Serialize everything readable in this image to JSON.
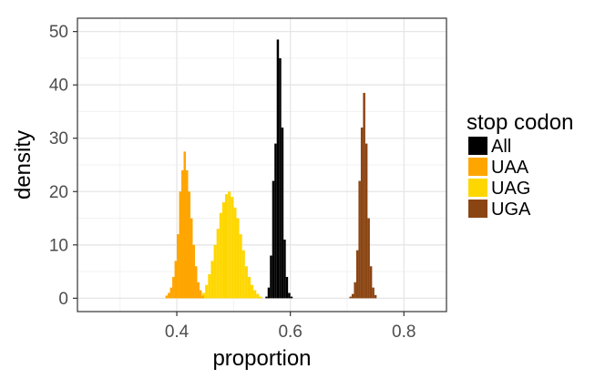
{
  "chart_data": {
    "type": "histogram",
    "xlabel": "proportion",
    "ylabel": "density",
    "xlim": [
      0.225,
      0.875
    ],
    "ylim": [
      -2.5,
      52.5
    ],
    "x_ticks": [
      0.4,
      0.6,
      0.8
    ],
    "x_tick_labels": [
      "0.4",
      "0.6",
      "0.8"
    ],
    "y_ticks": [
      0,
      10,
      20,
      30,
      40,
      50
    ],
    "y_tick_labels": [
      "0",
      "10",
      "20",
      "30",
      "40",
      "50"
    ],
    "grid": true,
    "legend": {
      "title": "stop codon",
      "position": "right",
      "entries": [
        "All",
        "UAA",
        "UAG",
        "UGA"
      ]
    },
    "series": [
      {
        "name": "UAG",
        "color": "#FFD700",
        "bin_width": 0.005,
        "bins": [
          [
            0.44,
            0.3
          ],
          [
            0.445,
            1.0
          ],
          [
            0.45,
            2.5
          ],
          [
            0.455,
            4.5
          ],
          [
            0.46,
            7.0
          ],
          [
            0.465,
            10.0
          ],
          [
            0.47,
            13.0
          ],
          [
            0.475,
            16.0
          ],
          [
            0.48,
            18.0
          ],
          [
            0.485,
            19.5
          ],
          [
            0.49,
            20.0
          ],
          [
            0.495,
            19.0
          ],
          [
            0.5,
            17.0
          ],
          [
            0.505,
            15.0
          ],
          [
            0.51,
            12.0
          ],
          [
            0.515,
            9.0
          ],
          [
            0.52,
            6.0
          ],
          [
            0.525,
            4.0
          ],
          [
            0.53,
            2.5
          ],
          [
            0.535,
            1.5
          ],
          [
            0.54,
            0.8
          ],
          [
            0.545,
            0.3
          ]
        ]
      },
      {
        "name": "UAA",
        "color": "#FFA500",
        "bin_width": 0.004,
        "bins": [
          [
            0.38,
            0.5
          ],
          [
            0.384,
            1.0
          ],
          [
            0.388,
            2.0
          ],
          [
            0.392,
            4.0
          ],
          [
            0.396,
            7.0
          ],
          [
            0.4,
            12.0
          ],
          [
            0.404,
            20.0
          ],
          [
            0.408,
            24.0
          ],
          [
            0.412,
            27.5
          ],
          [
            0.416,
            24.0
          ],
          [
            0.42,
            20.0
          ],
          [
            0.424,
            15.0
          ],
          [
            0.428,
            10.0
          ],
          [
            0.432,
            6.0
          ],
          [
            0.436,
            3.0
          ],
          [
            0.44,
            1.5
          ],
          [
            0.444,
            0.5
          ]
        ]
      },
      {
        "name": "All",
        "color": "#000000",
        "bin_width": 0.004,
        "bins": [
          [
            0.556,
            0.3
          ],
          [
            0.56,
            2.0
          ],
          [
            0.564,
            8.0
          ],
          [
            0.568,
            22.0
          ],
          [
            0.572,
            29.0
          ],
          [
            0.576,
            48.5
          ],
          [
            0.58,
            45.0
          ],
          [
            0.584,
            32.0
          ],
          [
            0.588,
            11.0
          ],
          [
            0.592,
            4.0
          ],
          [
            0.596,
            1.0
          ],
          [
            0.6,
            0.3
          ]
        ]
      },
      {
        "name": "UGA",
        "color": "#8B4513",
        "bin_width": 0.004,
        "bins": [
          [
            0.704,
            0.3
          ],
          [
            0.708,
            0.8
          ],
          [
            0.712,
            3.0
          ],
          [
            0.716,
            9.0
          ],
          [
            0.72,
            22.0
          ],
          [
            0.724,
            32.0
          ],
          [
            0.728,
            38.5
          ],
          [
            0.732,
            29.0
          ],
          [
            0.736,
            15.0
          ],
          [
            0.74,
            6.0
          ],
          [
            0.744,
            2.0
          ],
          [
            0.748,
            0.6
          ]
        ]
      }
    ]
  }
}
